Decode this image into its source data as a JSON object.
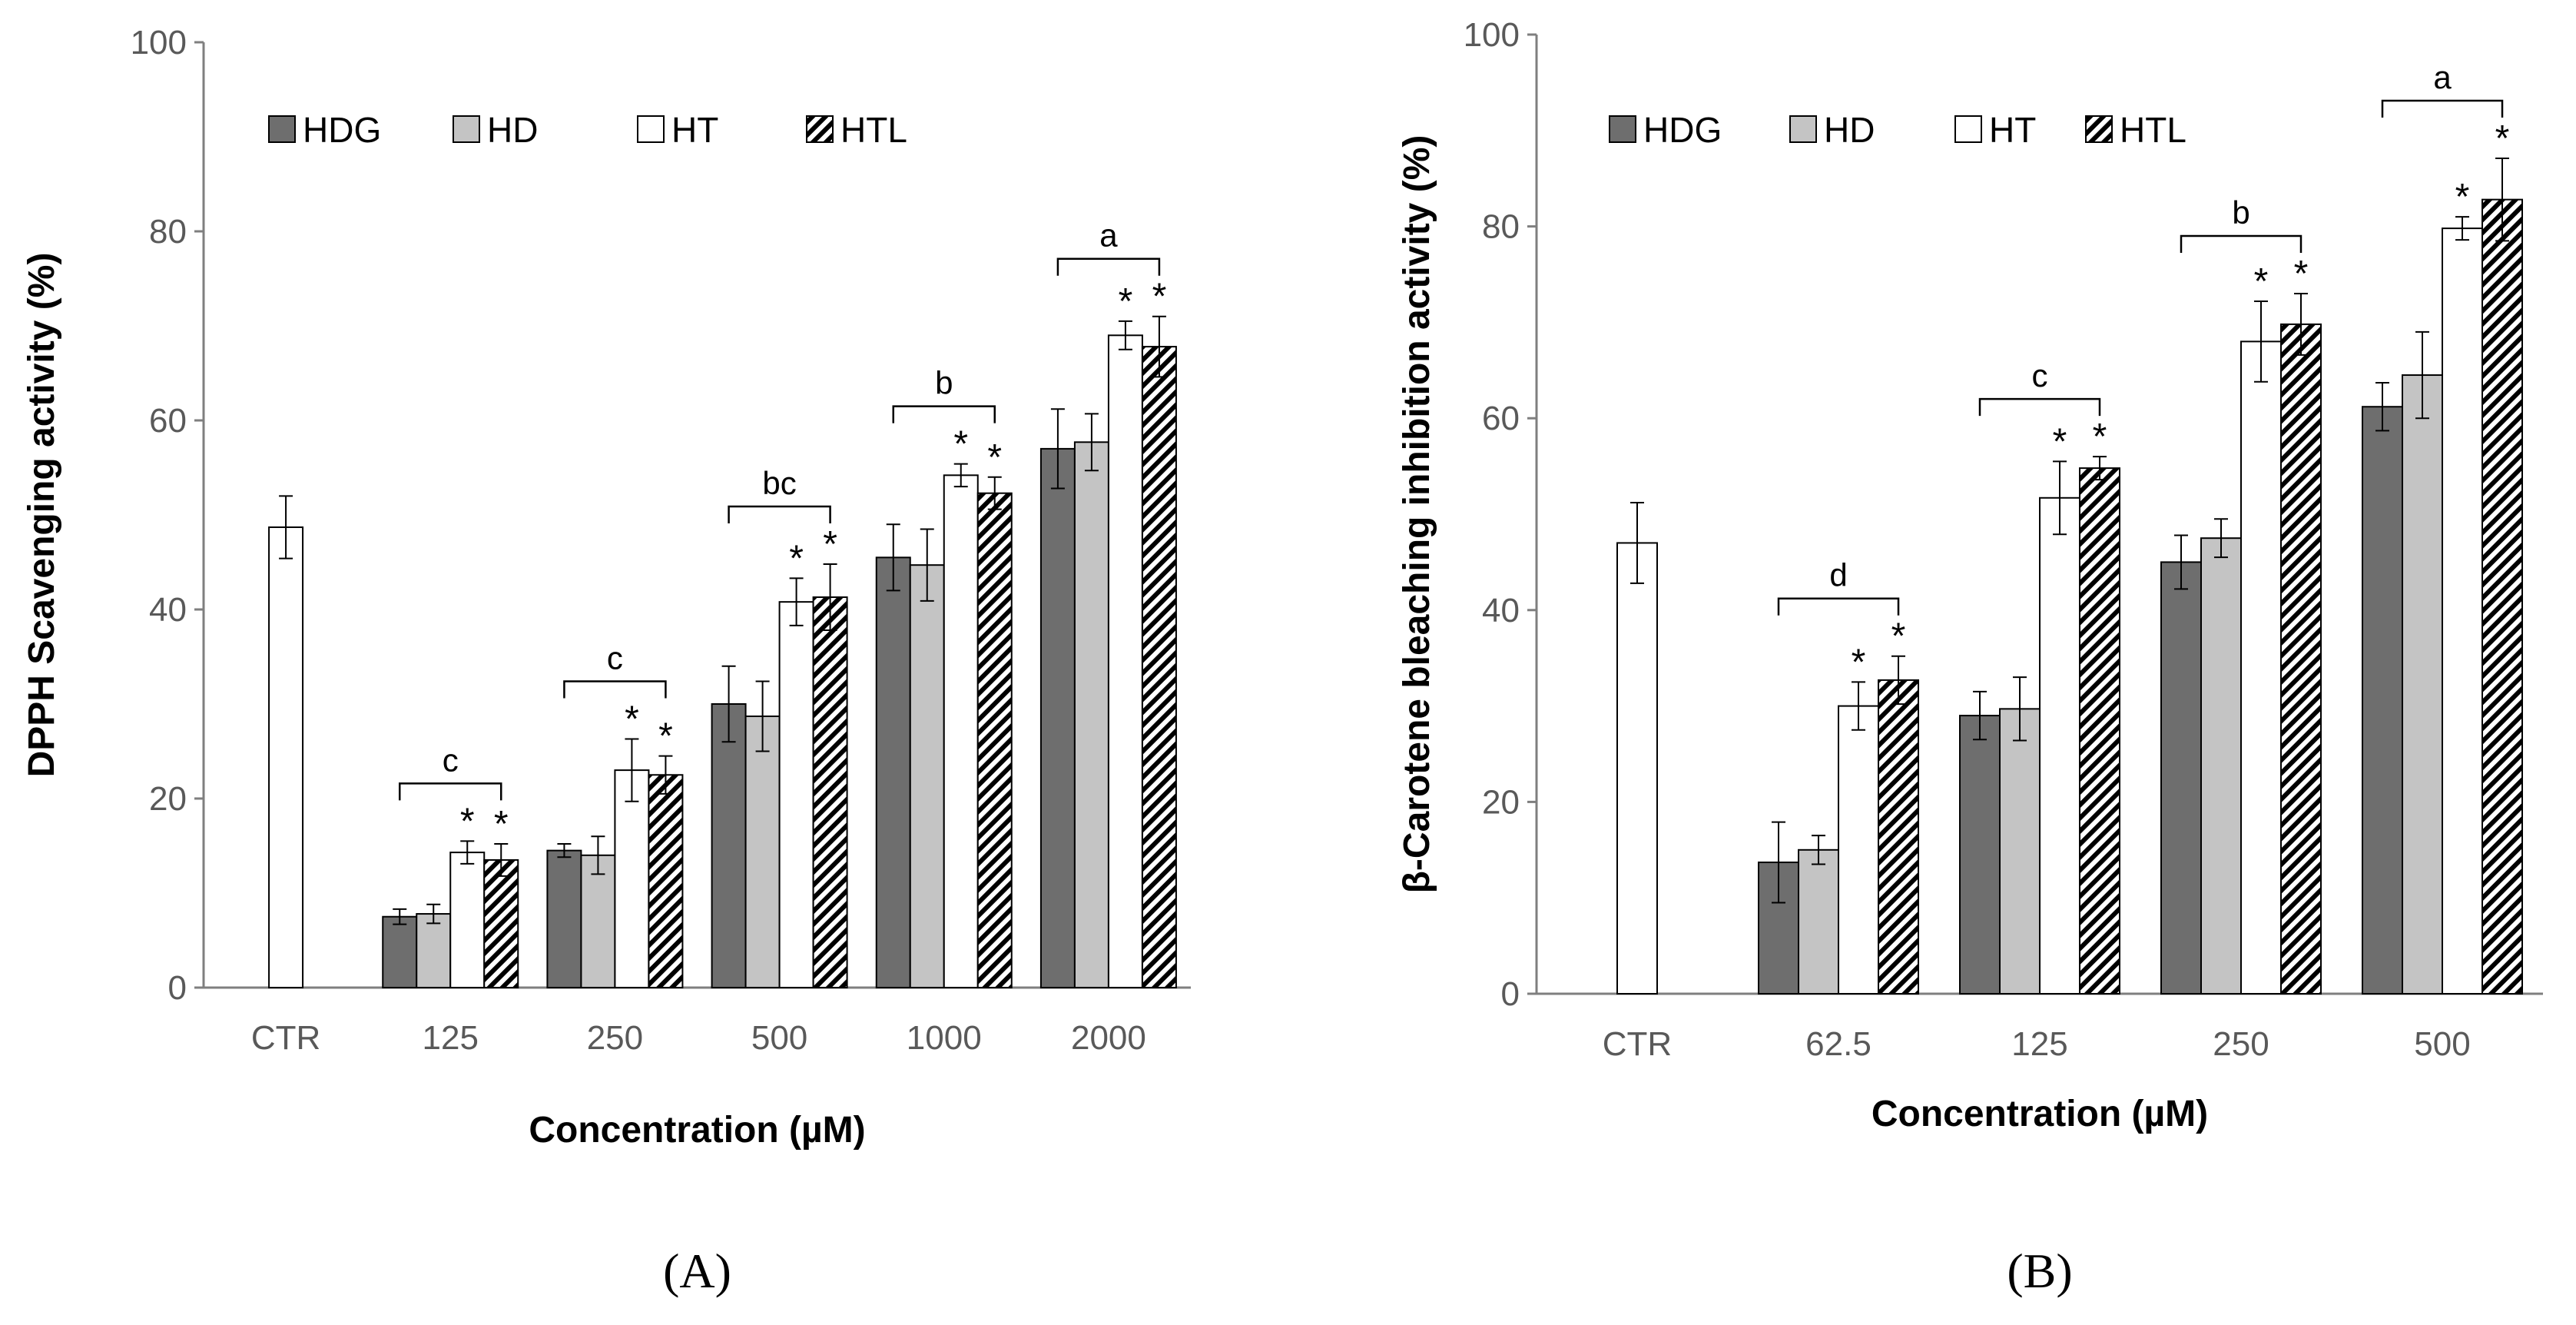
{
  "chart_data": [
    {
      "type": "bar",
      "panel_label": "(A)",
      "ylabel": "DPPH Scavenging activity (%)",
      "xlabel": "Concentration (µM)",
      "ylim": [
        0,
        100
      ],
      "yticks": [
        0,
        20,
        40,
        60,
        80,
        100
      ],
      "categories": [
        "CTR",
        "125",
        "250",
        "500",
        "1000",
        "2000"
      ],
      "legend": [
        "HDG",
        "HD",
        "HT",
        "HTL"
      ],
      "legend_position": "top-left",
      "series": [
        {
          "name": "HDG",
          "values": [
            null,
            7.5,
            14.5,
            30.0,
            45.5,
            57.0
          ],
          "errors": [
            null,
            0.8,
            0.7,
            4.0,
            3.5,
            4.2
          ]
        },
        {
          "name": "HD",
          "values": [
            null,
            7.8,
            14.0,
            28.7,
            44.7,
            57.7
          ],
          "errors": [
            null,
            1.0,
            2.0,
            3.7,
            3.8,
            3.0
          ]
        },
        {
          "name": "HT",
          "values": [
            48.7,
            14.3,
            23.0,
            40.8,
            54.2,
            69.0
          ],
          "errors": [
            3.3,
            1.2,
            3.3,
            2.5,
            1.2,
            1.5
          ]
        },
        {
          "name": "HTL",
          "values": [
            null,
            13.5,
            22.5,
            41.3,
            52.3,
            67.8
          ],
          "errors": [
            null,
            1.7,
            2.0,
            3.5,
            1.7,
            3.2
          ]
        }
      ],
      "significance_letters": [
        null,
        "c",
        "c",
        "bc",
        "b",
        "a"
      ],
      "stars_on": [
        "HT",
        "HTL"
      ],
      "star_symbol": "*"
    },
    {
      "type": "bar",
      "panel_label": "(B)",
      "ylabel": "β-Carotene bleaching inhibition activity (%)",
      "xlabel": "Concentration (µM)",
      "ylim": [
        0,
        100
      ],
      "yticks": [
        0,
        20,
        40,
        60,
        80,
        100
      ],
      "categories": [
        "CTR",
        "62.5",
        "125",
        "250",
        "500"
      ],
      "legend": [
        "HDG",
        "HD",
        "HT",
        "HTL"
      ],
      "legend_position": "top-left",
      "series": [
        {
          "name": "HDG",
          "values": [
            null,
            13.7,
            29.0,
            45.0,
            61.2
          ],
          "errors": [
            null,
            4.2,
            2.5,
            2.8,
            2.5
          ]
        },
        {
          "name": "HD",
          "values": [
            null,
            15.0,
            29.7,
            47.5,
            64.5
          ],
          "errors": [
            null,
            1.5,
            3.3,
            2.0,
            4.5
          ]
        },
        {
          "name": "HT",
          "values": [
            47.0,
            30.0,
            51.7,
            68.0,
            79.8
          ],
          "errors": [
            4.2,
            2.5,
            3.8,
            4.2,
            1.2
          ]
        },
        {
          "name": "HTL",
          "values": [
            null,
            32.7,
            54.8,
            69.8,
            82.8
          ],
          "errors": [
            null,
            2.5,
            1.2,
            3.2,
            4.3
          ]
        }
      ],
      "significance_letters": [
        null,
        "d",
        "c",
        "b",
        "a"
      ],
      "stars_on": [
        "HT",
        "HTL"
      ],
      "star_symbol": "*"
    }
  ],
  "colors": {
    "HDG": "#6e6e6e",
    "HD": "#c4c4c4",
    "HT": "#ffffff",
    "HTL": "hatched",
    "axis": "#7f7f7f",
    "text": "#000000",
    "tick_text": "#595959"
  }
}
